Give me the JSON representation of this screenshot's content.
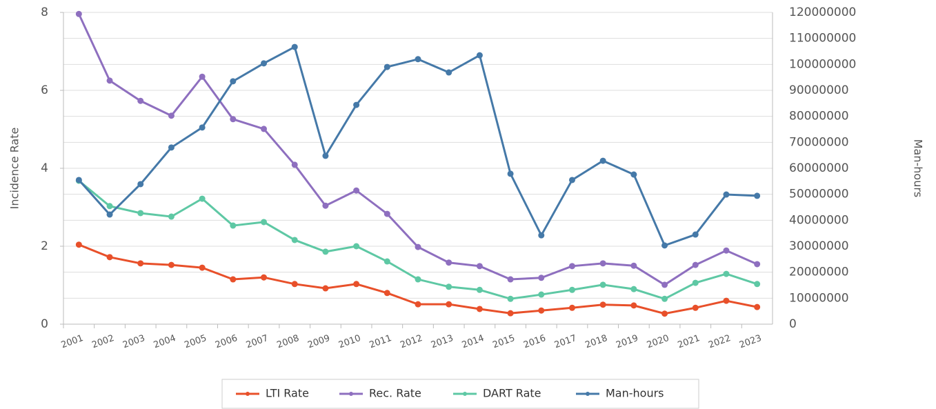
{
  "chart_data": {
    "type": "line",
    "categories": [
      "2001",
      "2002",
      "2003",
      "2004",
      "2005",
      "2006",
      "2007",
      "2008",
      "2009",
      "2010",
      "2011",
      "2012",
      "2013",
      "2014",
      "2015",
      "2016",
      "2017",
      "2018",
      "2019",
      "2020",
      "2021",
      "2022",
      "2023"
    ],
    "ylabel": "Incidence Rate",
    "y2label": "Man-hours",
    "ylim": [
      0,
      8
    ],
    "yticks": [
      0,
      2,
      4,
      6,
      8
    ],
    "y2lim": [
      0,
      120000000
    ],
    "y2ticks": [
      0,
      10000000,
      20000000,
      30000000,
      40000000,
      50000000,
      60000000,
      70000000,
      80000000,
      90000000,
      100000000,
      110000000,
      120000000
    ],
    "grid": true,
    "legend": "bottom",
    "series": [
      {
        "name": "LTI Rate",
        "color": "#e8502a",
        "values": [
          2.04,
          1.72,
          1.56,
          1.52,
          1.45,
          1.15,
          1.2,
          1.03,
          0.92,
          1.03,
          0.8,
          0.51,
          0.51,
          0.39,
          0.28,
          0.35,
          0.42,
          0.5,
          0.48,
          0.27,
          0.42,
          0.6,
          0.44
        ]
      },
      {
        "name": "Rec. Rate",
        "color": "#8e6fbf",
        "values": [
          7.96,
          6.25,
          5.73,
          5.35,
          6.35,
          5.26,
          5.01,
          4.09,
          3.04,
          3.43,
          2.83,
          1.98,
          1.58,
          1.49,
          1.15,
          1.19,
          1.49,
          1.56,
          1.5,
          1.01,
          1.52,
          1.89,
          1.54
        ]
      },
      {
        "name": "DART Rate",
        "color": "#5ec8a4",
        "values": [
          3.68,
          3.03,
          2.85,
          2.76,
          3.22,
          2.53,
          2.62,
          2.16,
          1.86,
          2.0,
          1.61,
          1.15,
          0.96,
          0.88,
          0.65,
          0.76,
          0.88,
          1.01,
          0.9,
          0.65,
          1.06,
          1.29,
          1.03
        ]
      },
      {
        "name": "Man-hours",
        "color": "#4579a8",
        "axis": "y2",
        "values": [
          55500000,
          42200000,
          53900000,
          68000000,
          75700000,
          93500000,
          100400000,
          106700000,
          64800000,
          84400000,
          99000000,
          102000000,
          96900000,
          103500000,
          57900000,
          34200000,
          55500000,
          62900000,
          57600000,
          30300000,
          34500000,
          49900000,
          49400000
        ]
      }
    ]
  }
}
